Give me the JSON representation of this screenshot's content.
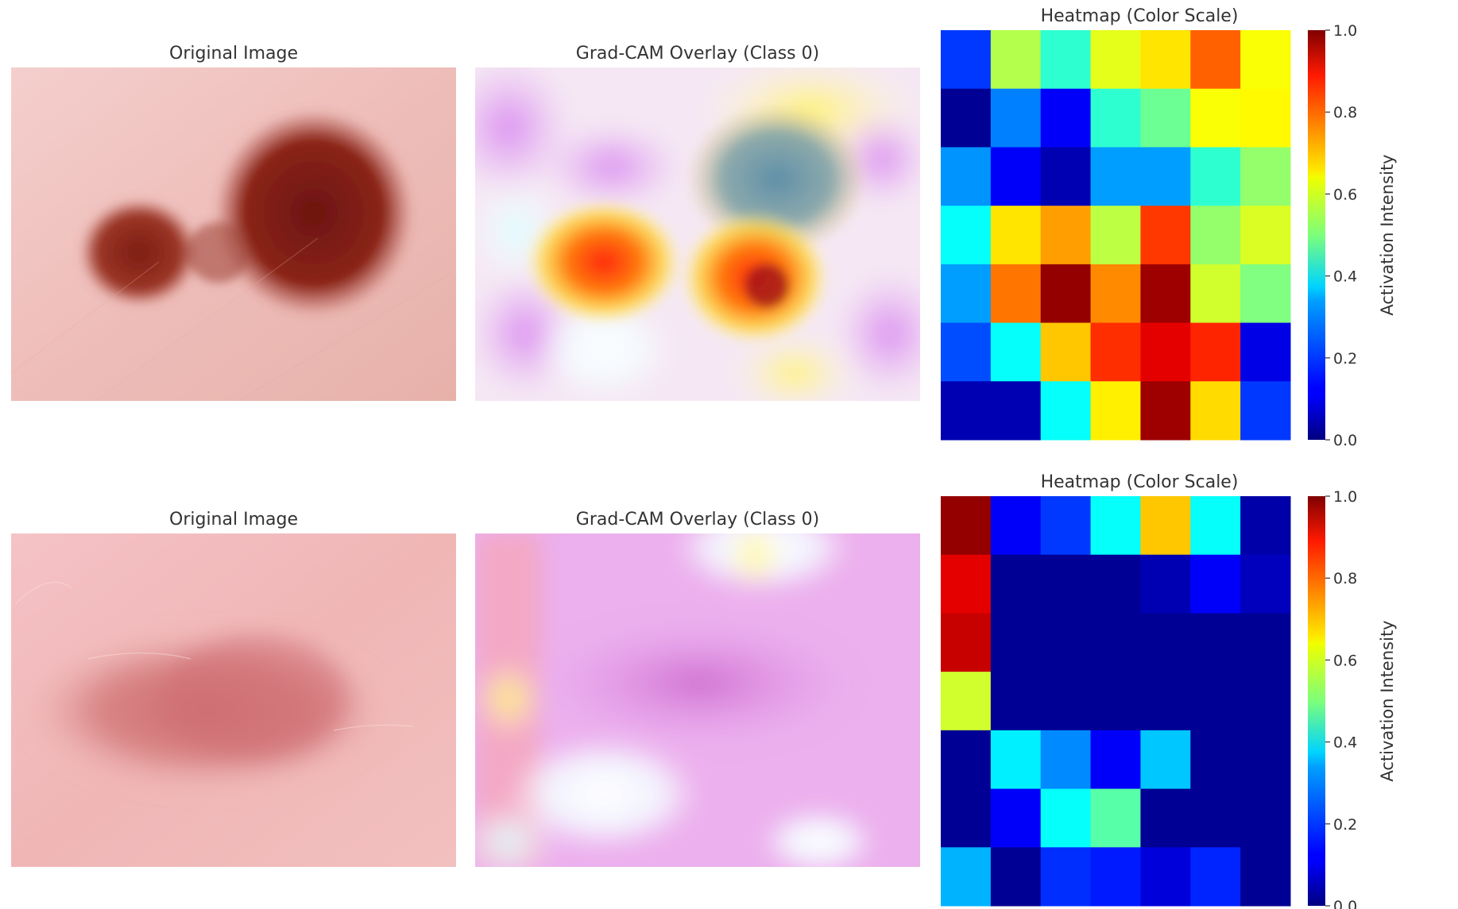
{
  "figure": {
    "rows": [
      {
        "original_title": "Original Image",
        "overlay_title": "Grad-CAM Overlay (Class 0)",
        "heatmap_title": "Heatmap (Color Scale)",
        "colorbar_label": "Activation Intensity",
        "colorbar_ticks": [
          "0.0",
          "0.2",
          "0.4",
          "0.6",
          "0.8",
          "1.0"
        ]
      },
      {
        "original_title": "Original Image",
        "overlay_title": "Grad-CAM Overlay (Class 0)",
        "heatmap_title": "Heatmap (Color Scale)",
        "colorbar_label": "Activation Intensity",
        "colorbar_ticks": [
          "0.0",
          "0.2",
          "0.4",
          "0.6",
          "0.8",
          "1.0"
        ]
      }
    ]
  },
  "chart_data": [
    {
      "type": "heatmap",
      "title": "Heatmap (Color Scale)",
      "colormap": "jet",
      "vlim": [
        0,
        1
      ],
      "colorbar_label": "Activation Intensity",
      "values": [
        [
          0.18,
          0.55,
          0.42,
          0.6,
          0.65,
          0.78,
          0.62
        ],
        [
          0.02,
          0.25,
          0.12,
          0.42,
          0.48,
          0.62,
          0.63
        ],
        [
          0.27,
          0.12,
          0.05,
          0.28,
          0.28,
          0.42,
          0.52
        ],
        [
          0.38,
          0.65,
          0.72,
          0.56,
          0.82,
          0.52,
          0.59
        ],
        [
          0.28,
          0.76,
          0.98,
          0.74,
          0.97,
          0.58,
          0.5
        ],
        [
          0.2,
          0.38,
          0.68,
          0.83,
          0.9,
          0.84,
          0.1
        ],
        [
          0.05,
          0.05,
          0.38,
          0.64,
          0.97,
          0.66,
          0.18
        ]
      ]
    },
    {
      "type": "heatmap",
      "title": "Heatmap (Color Scale)",
      "colormap": "jet",
      "vlim": [
        0,
        1
      ],
      "colorbar_label": "Activation Intensity",
      "values": [
        [
          0.98,
          0.12,
          0.18,
          0.38,
          0.68,
          0.38,
          0.04
        ],
        [
          0.9,
          0.02,
          0.02,
          0.02,
          0.05,
          0.12,
          0.06
        ],
        [
          0.93,
          0.02,
          0.02,
          0.02,
          0.02,
          0.02,
          0.02
        ],
        [
          0.58,
          0.02,
          0.02,
          0.02,
          0.02,
          0.02,
          0.02
        ],
        [
          0.02,
          0.36,
          0.26,
          0.12,
          0.32,
          0.02,
          0.02
        ],
        [
          0.02,
          0.12,
          0.38,
          0.46,
          0.02,
          0.02,
          0.02
        ],
        [
          0.3,
          0.02,
          0.17,
          0.15,
          0.09,
          0.16,
          0.02
        ]
      ]
    }
  ],
  "colors": {
    "skin_light": "#f3c9c6",
    "lesion_dark": "#7a1d14",
    "lesion_light": "#c87072"
  }
}
